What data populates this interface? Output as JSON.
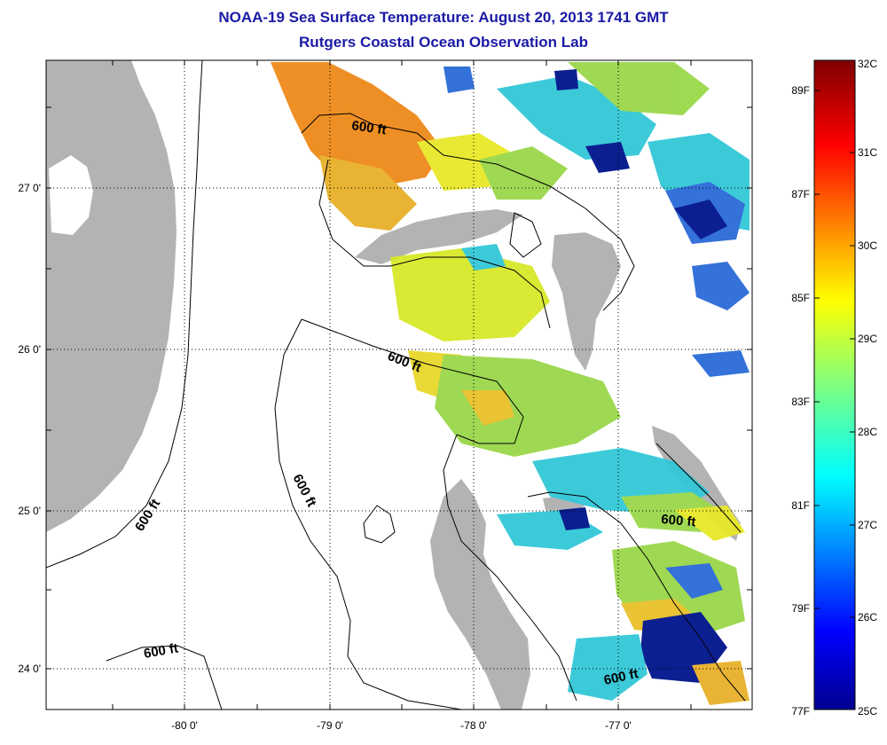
{
  "title_line1": "NOAA-19 Sea Surface Temperature:  August 20, 2013 1741 GMT",
  "title_line2": "Rutgers Coastal Ocean Observation Lab",
  "axes": {
    "x_ticks": [
      "-80 0'",
      "-79 0'",
      "-78 0'",
      "-77 0'"
    ],
    "y_ticks": [
      "27 0'",
      "26 0'",
      "25 0'",
      "24 0'"
    ]
  },
  "contour_labels": [
    "600 ft",
    "600 ft",
    "600 ft",
    "600 ft",
    "600 ft",
    "600 ft",
    "600 ft"
  ],
  "colorbar": {
    "celsius": [
      "32C",
      "31C",
      "30C",
      "29C",
      "28C",
      "27C",
      "26C",
      "25C"
    ],
    "fahrenheit": [
      "89F",
      "87F",
      "85F",
      "83F",
      "81F",
      "79F",
      "77F"
    ]
  },
  "colors": {
    "title": "#1a1aa6",
    "land": "#b3b3b3",
    "warm": "#ee8a1a",
    "yellow": "#e8e82a",
    "green": "#9ad84a",
    "cyan": "#32c8d8",
    "blue": "#2a6ad8",
    "navy": "#00148c"
  }
}
